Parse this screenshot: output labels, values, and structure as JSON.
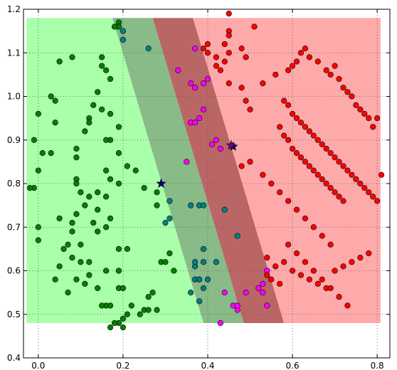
{
  "chart_data": {
    "type": "scatter",
    "title": "",
    "xlabel": "",
    "ylabel": "",
    "xlim": [
      -0.035,
      0.83
    ],
    "ylim": [
      0.4,
      1.2
    ],
    "grid": true,
    "legend": "none",
    "x_ticks": [
      {
        "value": 0.0,
        "label": "0.0"
      },
      {
        "value": 0.2,
        "label": "0.2"
      },
      {
        "value": 0.4,
        "label": "0.4"
      },
      {
        "value": 0.6,
        "label": "0.6"
      },
      {
        "value": 0.8,
        "label": "0.8"
      }
    ],
    "y_ticks": [
      {
        "value": 0.4,
        "label": "0.4"
      },
      {
        "value": 0.5,
        "label": "0.5"
      },
      {
        "value": 0.6,
        "label": "0.6"
      },
      {
        "value": 0.7,
        "label": "0.7"
      },
      {
        "value": 0.8,
        "label": "0.8"
      },
      {
        "value": 0.9,
        "label": "0.9"
      },
      {
        "value": 1.0,
        "label": "1.0"
      },
      {
        "value": 1.1,
        "label": "1.1"
      },
      {
        "value": 1.2,
        "label": "1.2"
      }
    ],
    "regions": {
      "extent": {
        "x": [
          -0.028,
          0.808
        ],
        "y": [
          0.48,
          1.18
        ]
      },
      "boundaries": [
        {
          "top_x": 0.175,
          "bottom_x": 0.39
        },
        {
          "top_x": 0.27,
          "bottom_x": 0.485
        },
        {
          "top_x": 0.365,
          "bottom_x": 0.58
        }
      ],
      "fills": [
        "#aaffaa",
        "#88bb88",
        "#bb6666",
        "#ffaaaa"
      ]
    },
    "series": [
      {
        "color": "#008000",
        "x": [
          0.19,
          0.19,
          0.18,
          0.15,
          0.16,
          0.05,
          0.08,
          0.15,
          0.17,
          0.14,
          0.03,
          0.13,
          0.04,
          0.15,
          0.17,
          0.12,
          0.0,
          0.12,
          0.19,
          0.11,
          0.17,
          0.09,
          0.16,
          0.03,
          0.01,
          -0.01,
          0.04,
          0.0,
          0.09,
          0.19,
          0.09,
          0.17,
          0.16,
          0.09,
          0.1,
          -0.01,
          0.14,
          0.21,
          0.23,
          0.19,
          0.16,
          0.12,
          0.11,
          0.05,
          0.0,
          -0.02,
          0.25,
          0.14,
          0.09,
          0.17,
          0.16,
          0.13,
          0.08,
          0.28,
          0.28,
          0.14,
          0.0,
          0.08,
          0.1,
          0.21,
          0.07,
          0.06,
          0.1,
          0.19,
          0.12,
          0.08,
          0.29,
          0.19,
          0.05,
          0.12,
          0.16,
          0.04,
          0.11,
          0.09,
          0.14,
          0.19,
          0.2,
          0.07,
          0.27,
          0.26,
          0.16,
          0.17,
          0.22,
          0.25,
          0.15,
          0.28,
          0.19,
          0.17,
          0.18,
          0.2,
          0.21,
          0.2,
          0.24,
          0.26,
          0.32,
          0.31,
          0.3
        ],
        "y": [
          1.17,
          1.16,
          1.16,
          1.09,
          1.06,
          1.08,
          1.09,
          1.07,
          1.04,
          1.01,
          1.0,
          0.98,
          0.99,
          0.97,
          0.96,
          0.95,
          0.96,
          0.94,
          0.93,
          0.92,
          0.9,
          0.88,
          0.9,
          0.87,
          0.87,
          0.9,
          0.94,
          0.83,
          0.86,
          0.87,
          0.81,
          0.81,
          0.83,
          0.8,
          0.78,
          0.79,
          0.78,
          0.84,
          0.83,
          0.8,
          0.77,
          0.77,
          0.75,
          0.72,
          0.7,
          0.79,
          0.79,
          0.74,
          0.73,
          0.72,
          0.7,
          0.71,
          0.71,
          0.78,
          0.75,
          0.69,
          0.67,
          0.69,
          0.66,
          0.65,
          0.66,
          0.65,
          0.62,
          0.65,
          0.62,
          0.63,
          0.62,
          0.6,
          0.61,
          0.59,
          0.6,
          0.58,
          0.57,
          0.58,
          0.56,
          0.56,
          0.56,
          0.55,
          0.55,
          0.54,
          0.52,
          0.52,
          0.52,
          0.51,
          0.52,
          0.51,
          0.48,
          0.47,
          0.48,
          0.49,
          0.5,
          0.47,
          0.5,
          0.51,
          0.6,
          0.64,
          0.62
        ]
      },
      {
        "color": "#008080",
        "x": [
          0.2,
          0.2,
          0.26,
          0.31,
          0.31,
          0.3,
          0.36,
          0.38,
          0.39,
          0.37,
          0.39,
          0.44,
          0.47,
          0.37,
          0.37,
          0.39,
          0.42,
          0.38,
          0.38,
          0.39,
          0.36,
          0.4,
          0.38
        ],
        "y": [
          1.15,
          1.13,
          1.11,
          0.76,
          0.72,
          0.71,
          0.75,
          0.75,
          0.75,
          0.61,
          0.65,
          0.74,
          0.68,
          0.62,
          0.58,
          0.62,
          0.62,
          0.58,
          0.58,
          0.56,
          0.55,
          0.58,
          0.53
        ]
      },
      {
        "color": "#ff00ff",
        "x": [
          0.37,
          0.33,
          0.4,
          0.36,
          0.37,
          0.39,
          0.39,
          0.38,
          0.36,
          0.37,
          0.42,
          0.41,
          0.43,
          0.35,
          0.44,
          0.54,
          0.53,
          0.53,
          0.52,
          0.49,
          0.47,
          0.46,
          0.54,
          0.47,
          0.43
        ],
        "y": [
          1.11,
          1.06,
          1.04,
          1.03,
          1.02,
          1.03,
          0.97,
          0.95,
          0.94,
          0.94,
          0.9,
          0.89,
          0.88,
          0.85,
          0.55,
          0.6,
          0.57,
          0.55,
          0.56,
          0.55,
          0.51,
          0.52,
          0.52,
          0.52,
          0.48
        ]
      },
      {
        "color": "#ff0000",
        "x": [
          0.45,
          0.51,
          0.45,
          0.45,
          0.44,
          0.48,
          0.49,
          0.45,
          0.44,
          0.42,
          0.39,
          0.4,
          0.4,
          0.42,
          0.43,
          0.45,
          0.48,
          0.49,
          0.5,
          0.53,
          0.56,
          0.59,
          0.6,
          0.61,
          0.62,
          0.63,
          0.64,
          0.66,
          0.68,
          0.69,
          0.7,
          0.71,
          0.72,
          0.73,
          0.74,
          0.75,
          0.76,
          0.77,
          0.78,
          0.79,
          0.8,
          0.58,
          0.59,
          0.6,
          0.61,
          0.62,
          0.63,
          0.64,
          0.65,
          0.66,
          0.67,
          0.68,
          0.69,
          0.7,
          0.71,
          0.72,
          0.73,
          0.74,
          0.75,
          0.76,
          0.77,
          0.78,
          0.79,
          0.8,
          0.81,
          0.57,
          0.58,
          0.59,
          0.6,
          0.61,
          0.62,
          0.63,
          0.64,
          0.65,
          0.66,
          0.67,
          0.68,
          0.69,
          0.7,
          0.71,
          0.72,
          0.48,
          0.5,
          0.53,
          0.55,
          0.57,
          0.59,
          0.61,
          0.63,
          0.65,
          0.67,
          0.69,
          0.54,
          0.56,
          0.58,
          0.6,
          0.62,
          0.64,
          0.66,
          0.68,
          0.7,
          0.72,
          0.74,
          0.76,
          0.78,
          0.54,
          0.55,
          0.57,
          0.59,
          0.61,
          0.63,
          0.65,
          0.67,
          0.69,
          0.71,
          0.73
        ],
        "y": [
          1.19,
          1.16,
          1.15,
          1.14,
          1.12,
          1.11,
          1.09,
          1.1,
          1.08,
          1.09,
          1.11,
          1.12,
          1.1,
          1.07,
          1.06,
          1.03,
          1.02,
          0.99,
          0.97,
          1.03,
          1.05,
          1.06,
          1.07,
          1.08,
          1.1,
          1.11,
          1.09,
          1.08,
          1.06,
          1.05,
          1.07,
          1.04,
          1.02,
          1.01,
          1.0,
          0.98,
          0.97,
          0.96,
          0.95,
          0.93,
          0.95,
          0.99,
          0.98,
          0.96,
          0.95,
          0.94,
          0.93,
          0.92,
          0.91,
          0.9,
          0.89,
          0.88,
          0.87,
          0.86,
          0.85,
          0.84,
          0.83,
          0.82,
          0.81,
          0.8,
          0.79,
          0.78,
          0.77,
          0.76,
          0.82,
          0.93,
          0.91,
          0.9,
          0.88,
          0.87,
          0.86,
          0.85,
          0.84,
          0.83,
          0.82,
          0.81,
          0.8,
          0.79,
          0.78,
          0.77,
          0.76,
          0.84,
          0.85,
          0.82,
          0.8,
          0.78,
          0.76,
          0.74,
          0.72,
          0.7,
          0.68,
          0.66,
          0.63,
          0.61,
          0.62,
          0.6,
          0.59,
          0.58,
          0.57,
          0.56,
          0.6,
          0.61,
          0.62,
          0.63,
          0.64,
          0.59,
          0.58,
          0.57,
          0.66,
          0.64,
          0.62,
          0.6,
          0.58,
          0.56,
          0.54,
          0.52
        ]
      },
      {
        "color": "#000080",
        "marker": "star",
        "x": [
          0.29,
          0.46
        ],
        "y": [
          0.8,
          0.885
        ]
      },
      {
        "color": "#800080",
        "marker": "star",
        "x": [
          0.455
        ],
        "y": [
          0.888
        ]
      }
    ]
  }
}
